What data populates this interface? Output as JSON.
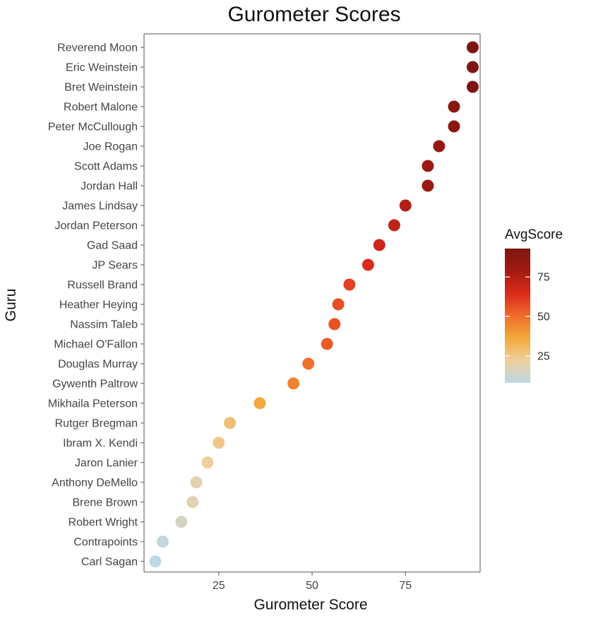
{
  "chart_data": {
    "type": "scatter",
    "title": "Gurometer Scores",
    "xlabel": "Gurometer Score",
    "ylabel": "Guru",
    "xlim": [
      5,
      95
    ],
    "xticks": [
      25,
      50,
      75
    ],
    "grid": false,
    "legend": {
      "title": "AvgScore",
      "placement": "right",
      "ticks": [
        25,
        50,
        75
      ],
      "range": [
        8,
        93
      ],
      "colors": [
        "#bcd8e6",
        "#efcf9c",
        "#f2a93b",
        "#ee6b2b",
        "#dc2b1c",
        "#a21b12",
        "#7e1511"
      ]
    },
    "points": [
      {
        "name": "Reverend Moon",
        "value": 93
      },
      {
        "name": "Eric Weinstein",
        "value": 93
      },
      {
        "name": "Bret Weinstein",
        "value": 93
      },
      {
        "name": "Robert Malone",
        "value": 88
      },
      {
        "name": "Peter McCullough",
        "value": 88
      },
      {
        "name": "Joe Rogan",
        "value": 84
      },
      {
        "name": "Scott Adams",
        "value": 81
      },
      {
        "name": "Jordan Hall",
        "value": 81
      },
      {
        "name": "James Lindsay",
        "value": 75
      },
      {
        "name": "Jordan Peterson",
        "value": 72
      },
      {
        "name": "Gad Saad",
        "value": 68
      },
      {
        "name": "JP Sears",
        "value": 65
      },
      {
        "name": "Russell Brand",
        "value": 60
      },
      {
        "name": "Heather Heying",
        "value": 57
      },
      {
        "name": "Nassim Taleb",
        "value": 56
      },
      {
        "name": "Michael O'Fallon",
        "value": 54
      },
      {
        "name": "Douglas Murray",
        "value": 49
      },
      {
        "name": "Gywenth Paltrow",
        "value": 45
      },
      {
        "name": "Mikhaila Peterson",
        "value": 36
      },
      {
        "name": "Rutger Bregman",
        "value": 28
      },
      {
        "name": "Ibram X. Kendi",
        "value": 25
      },
      {
        "name": "Jaron Lanier",
        "value": 22
      },
      {
        "name": "Anthony DeMello",
        "value": 19
      },
      {
        "name": "Brene Brown",
        "value": 18
      },
      {
        "name": "Robert Wright",
        "value": 15
      },
      {
        "name": "Contrapoints",
        "value": 10
      },
      {
        "name": "Carl Sagan",
        "value": 8
      }
    ]
  }
}
